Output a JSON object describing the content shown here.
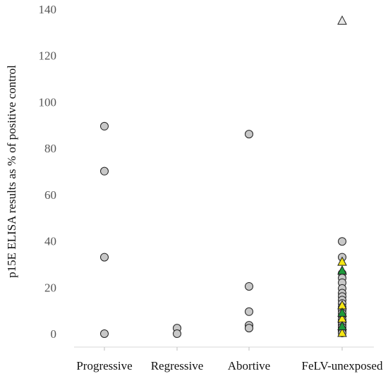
{
  "chart_data": {
    "type": "scatter",
    "ylabel": "p15E ELISA results as % of positive control",
    "xlabel": "",
    "categories": [
      "Progressive",
      "Regressive",
      "Abortive",
      "FeLV-unexposed"
    ],
    "ylim": [
      0,
      140
    ],
    "yticks": [
      0,
      20,
      40,
      60,
      80,
      100,
      120,
      140
    ],
    "grid": false,
    "legend": "none",
    "colors": {
      "circle_fill": "#c8c8c8",
      "yellow_triangle": "#f5e614",
      "green_triangle": "#1e9a3c",
      "white_triangle": "#e8e8e8",
      "stroke": "#222222"
    },
    "series": [
      {
        "marker": "circle",
        "points": [
          {
            "category": "Progressive",
            "y": 89.5
          },
          {
            "category": "Progressive",
            "y": 70.1
          },
          {
            "category": "Progressive",
            "y": 33.0
          },
          {
            "category": "Progressive",
            "y": 0.0
          },
          {
            "category": "Regressive",
            "y": 2.4
          },
          {
            "category": "Regressive",
            "y": 0.0
          },
          {
            "category": "Abortive",
            "y": 86.1
          },
          {
            "category": "Abortive",
            "y": 20.4
          },
          {
            "category": "Abortive",
            "y": 9.5
          },
          {
            "category": "Abortive",
            "y": 3.6
          },
          {
            "category": "Abortive",
            "y": 2.4
          },
          {
            "category": "FeLV-unexposed",
            "y": 39.8
          },
          {
            "category": "FeLV-unexposed",
            "y": 33.0
          },
          {
            "category": "FeLV-unexposed",
            "y": 26.0
          },
          {
            "category": "FeLV-unexposed",
            "y": 24.0
          },
          {
            "category": "FeLV-unexposed",
            "y": 22.0
          },
          {
            "category": "FeLV-unexposed",
            "y": 19.5
          },
          {
            "category": "FeLV-unexposed",
            "y": 17.5
          },
          {
            "category": "FeLV-unexposed",
            "y": 16.0
          },
          {
            "category": "FeLV-unexposed",
            "y": 14.5
          },
          {
            "category": "FeLV-unexposed",
            "y": 13.0
          },
          {
            "category": "FeLV-unexposed",
            "y": 11.5
          },
          {
            "category": "FeLV-unexposed",
            "y": 10.0
          },
          {
            "category": "FeLV-unexposed",
            "y": 8.8
          },
          {
            "category": "FeLV-unexposed",
            "y": 7.5
          },
          {
            "category": "FeLV-unexposed",
            "y": 6.0
          },
          {
            "category": "FeLV-unexposed",
            "y": 5.0
          },
          {
            "category": "FeLV-unexposed",
            "y": 3.8
          },
          {
            "category": "FeLV-unexposed",
            "y": 2.8
          },
          {
            "category": "FeLV-unexposed",
            "y": 1.8
          },
          {
            "category": "FeLV-unexposed",
            "y": 1.0
          },
          {
            "category": "FeLV-unexposed",
            "y": 0.3
          }
        ]
      },
      {
        "marker": "triangle",
        "color": "yellow",
        "points": [
          {
            "category": "FeLV-unexposed",
            "y": 31.0
          },
          {
            "category": "FeLV-unexposed",
            "y": 12.2
          },
          {
            "category": "FeLV-unexposed",
            "y": 6.5
          },
          {
            "category": "FeLV-unexposed",
            "y": 0.3
          }
        ]
      },
      {
        "marker": "triangle",
        "color": "green",
        "points": [
          {
            "category": "FeLV-unexposed",
            "y": 27.2
          },
          {
            "category": "FeLV-unexposed",
            "y": 9.0
          },
          {
            "category": "FeLV-unexposed",
            "y": 3.2
          }
        ]
      },
      {
        "marker": "triangle",
        "color": "white",
        "points": [
          {
            "category": "FeLV-unexposed",
            "y": 135.0
          }
        ]
      }
    ]
  }
}
